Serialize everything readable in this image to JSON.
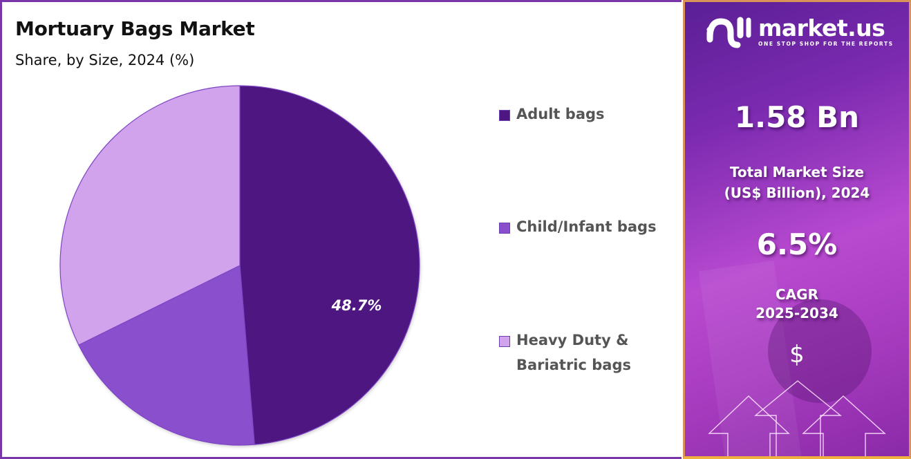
{
  "header": {
    "title": "Mortuary Bags Market",
    "subtitle": "Share, by Size, 2024 (%)"
  },
  "chart_data": {
    "type": "pie",
    "title": "Mortuary Bags Market",
    "subtitle": "Share, by Size, 2024 (%)",
    "categories": [
      "Adult bags",
      "Child/Infant bags",
      "Heavy Duty & Bariatric bags"
    ],
    "values": [
      48.7,
      19.0,
      32.3
    ],
    "colors": [
      "#4e1681",
      "#8a4fcc",
      "#d1a3ec"
    ],
    "data_labels": [
      "48.7%",
      "",
      ""
    ],
    "start_angle": "12 o'clock, clockwise",
    "legend_position": "right"
  },
  "legend": {
    "items": [
      {
        "label": "Adult bags",
        "color": "#4e1681"
      },
      {
        "label": "Child/Infant bags",
        "color": "#8a4fcc"
      },
      {
        "label": "Heavy Duty & Bariatric bags",
        "color": "#d1a3ec"
      }
    ]
  },
  "sidebar": {
    "brand": "market.us",
    "tagline": "ONE STOP SHOP FOR THE REPORTS",
    "market_size_value": "1.58 Bn",
    "market_size_label_line1": "Total Market Size",
    "market_size_label_line2": "(US$ Billion), 2024",
    "cagr_value": "6.5%",
    "cagr_label_line1": "CAGR",
    "cagr_label_line2": "2025-2034",
    "currency_symbol": "$"
  }
}
